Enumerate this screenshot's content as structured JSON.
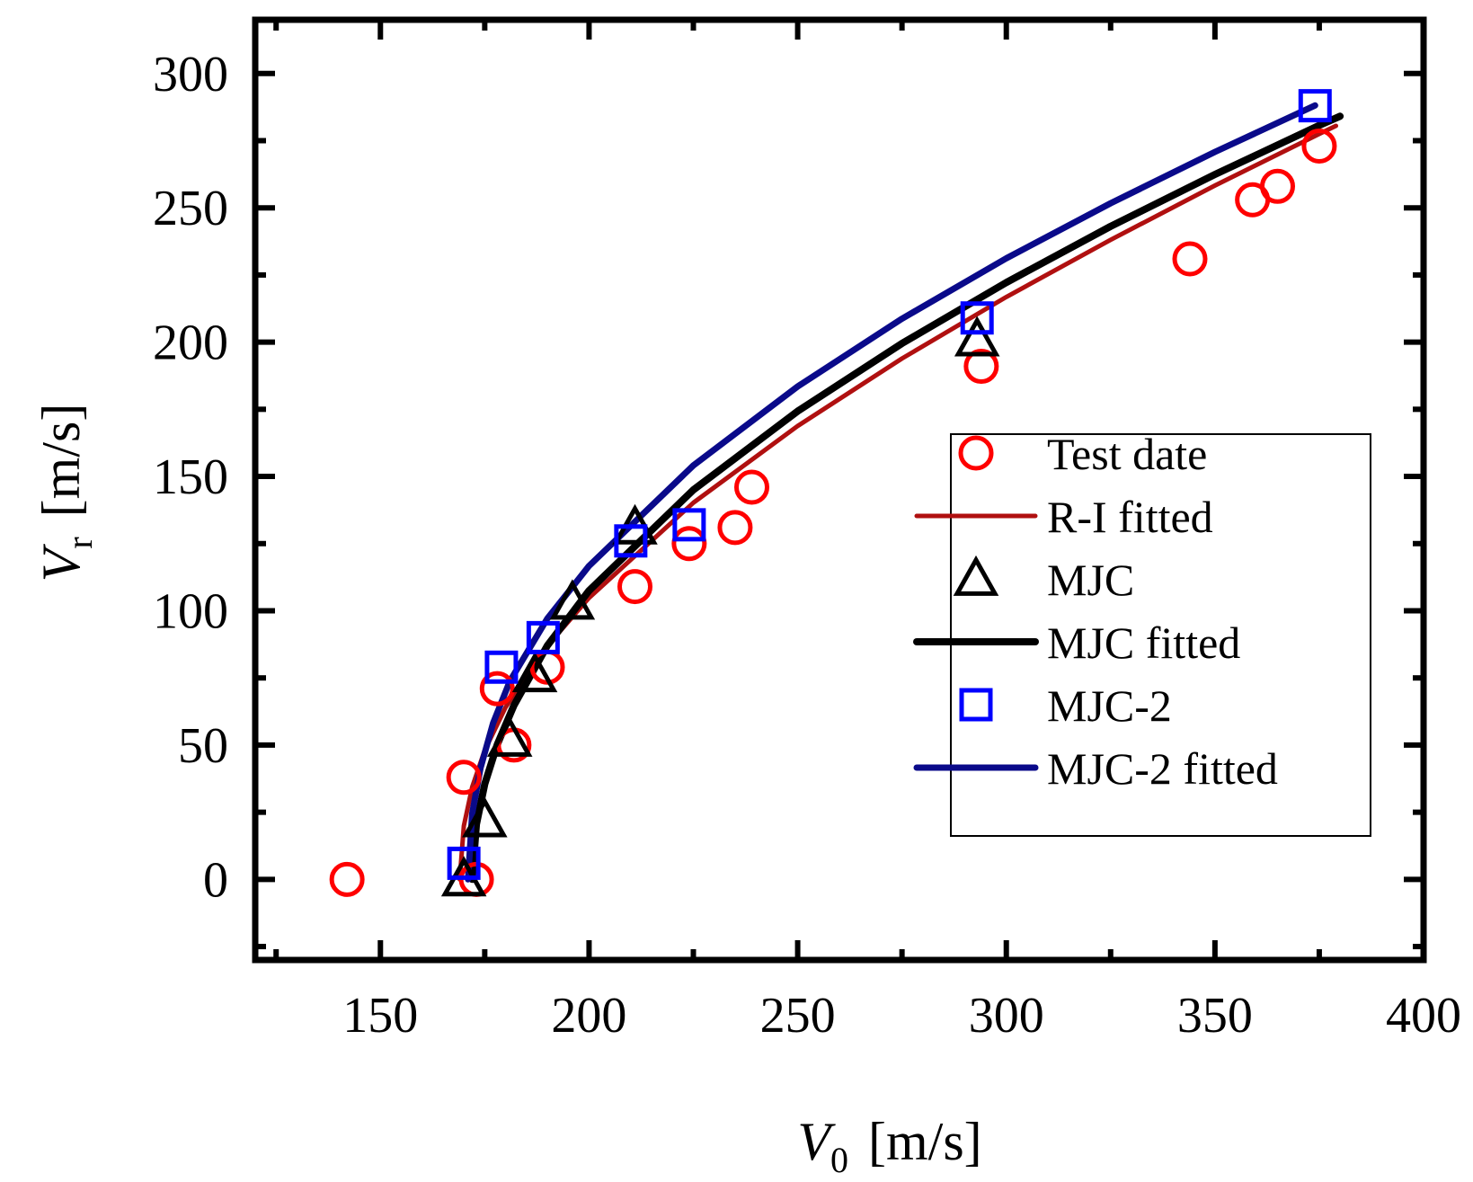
{
  "chart_data": {
    "type": "scatter",
    "xlabel_var": "V",
    "xlabel_sub": "0",
    "xlabel_unit": "[m/s]",
    "ylabel_var": "V",
    "ylabel_sub": "r",
    "ylabel_unit": "[m/s]",
    "xlim": [
      120,
      400
    ],
    "ylim": [
      -30,
      320
    ],
    "x_major_ticks": [
      150,
      200,
      250,
      300,
      350,
      400
    ],
    "y_major_ticks": [
      0,
      50,
      100,
      150,
      200,
      250,
      300
    ],
    "x_tick_labels": [
      "150",
      "200",
      "250",
      "300",
      "350",
      "400"
    ],
    "y_tick_labels": [
      "0",
      "50",
      "100",
      "150",
      "200",
      "250",
      "300"
    ],
    "x_minor_step": 25,
    "y_minor_step": 25,
    "legend_position": "center-right",
    "series": [
      {
        "name": "Test date",
        "kind": "points",
        "marker": "circle",
        "color": "#ff0000",
        "x": [
          142,
          170,
          173,
          178,
          182,
          190,
          211,
          224,
          235,
          239,
          294,
          344,
          359,
          365,
          375
        ],
        "y": [
          0,
          38,
          0,
          71,
          50,
          79,
          109,
          125,
          131,
          146,
          191,
          231,
          253,
          258,
          273
        ]
      },
      {
        "name": "R-I fitted",
        "kind": "line",
        "color": "#b01010",
        "width": 5,
        "x": [
          169,
          170,
          172,
          175,
          180,
          190,
          200,
          225,
          250,
          275,
          300,
          325,
          350,
          375,
          379
        ],
        "y": [
          0,
          19.9,
          34.4,
          48.1,
          64.1,
          86.9,
          104.8,
          140.2,
          168.8,
          193.9,
          216.8,
          238.1,
          258.3,
          277.5,
          280.5
        ]
      },
      {
        "name": "MJC",
        "kind": "points",
        "marker": "triangle",
        "color": "#000000",
        "x": [
          170,
          175,
          181,
          187,
          196,
          211,
          293
        ],
        "y": [
          0,
          22,
          52,
          76,
          103,
          131,
          201
        ]
      },
      {
        "name": "MJC fitted",
        "kind": "line",
        "color": "#000000",
        "width": 8,
        "x": [
          172,
          173,
          175,
          178,
          182,
          190,
          200,
          225,
          250,
          275,
          300,
          325,
          350,
          375,
          380
        ],
        "y": [
          0,
          20.5,
          35.5,
          50.2,
          64.8,
          87,
          107.5,
          145,
          174.3,
          199.5,
          222.2,
          243.1,
          262.4,
          280.7,
          284.1
        ]
      },
      {
        "name": "MJC-2",
        "kind": "points",
        "marker": "square",
        "color": "#0000ff",
        "x": [
          170,
          179,
          189,
          210,
          224,
          293,
          374
        ],
        "y": [
          6,
          79,
          90,
          126,
          132,
          209,
          288
        ]
      },
      {
        "name": "MJC-2 fitted",
        "kind": "line",
        "color": "#0a0a8a",
        "width": 7,
        "x": [
          171,
          172,
          174,
          177,
          181,
          190,
          200,
          225,
          250,
          275,
          300,
          325,
          350,
          374
        ],
        "y": [
          0,
          24.5,
          41.5,
          58.1,
          73.7,
          97.1,
          116.7,
          154.1,
          183.5,
          208.7,
          231.2,
          251.7,
          270.8,
          288.1
        ]
      }
    ]
  }
}
